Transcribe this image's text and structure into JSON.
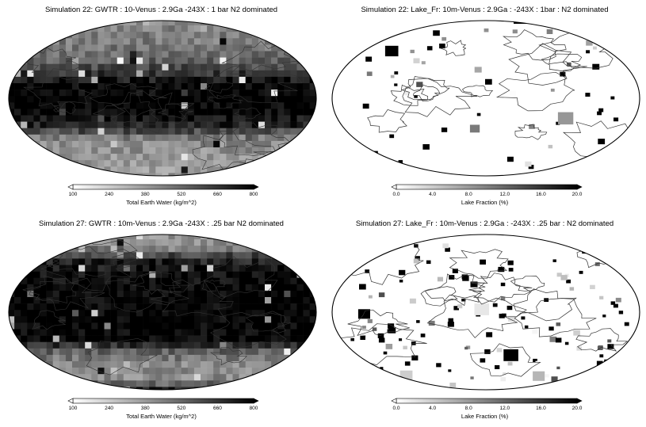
{
  "chart_data": [
    {
      "type": "heatmap",
      "projection": "Robinson",
      "title": "Simulation 22: GWTR : 10-Venus : 2.9Ga  -243X : 1 bar  N2 dominated",
      "colorbar_label": "Total Earth Water (kg/m^2)",
      "colorbar_ticks": [
        "100",
        "240",
        "380",
        "520",
        "660",
        "800"
      ],
      "vmin": 100,
      "vmax": 800,
      "colormap": "grayscale-reversed",
      "zonal_profile": {
        "lat": [
          90,
          75,
          60,
          45,
          30,
          15,
          0,
          -15,
          -30,
          -45,
          -60,
          -75,
          -90
        ],
        "value": [
          420,
          450,
          470,
          520,
          650,
          790,
          800,
          790,
          700,
          430,
          400,
          380,
          380
        ]
      }
    },
    {
      "type": "heatmap",
      "projection": "Robinson",
      "title": "Simulation 22: Lake_Fr: 10m-Venus : 2.9Ga : -243X : 1bar : N2 dominated",
      "colorbar_label": "Lake Fraction (%)",
      "colorbar_ticks": [
        "0.0",
        "4.0",
        "8.0",
        "12.0",
        "16.0",
        "20.0"
      ],
      "vmin": 0,
      "vmax": 20,
      "colormap": "grayscale-reversed",
      "background_value": 0
    },
    {
      "type": "heatmap",
      "projection": "Robinson",
      "title": "Simulation 27: GWTR : 10m-Venus : 2.9Ga  -243X : .25 bar  N2 dominated",
      "colorbar_label": "Total Earth Water (kg/m^2)",
      "colorbar_ticks": [
        "100",
        "240",
        "380",
        "520",
        "660",
        "800"
      ],
      "vmin": 100,
      "vmax": 800,
      "colormap": "grayscale-reversed",
      "zonal_profile": {
        "lat": [
          90,
          75,
          60,
          45,
          30,
          15,
          0,
          -15,
          -30,
          -45,
          -60,
          -75,
          -90
        ],
        "value": [
          400,
          420,
          700,
          760,
          800,
          800,
          800,
          800,
          800,
          500,
          420,
          420,
          780
        ]
      }
    },
    {
      "type": "heatmap",
      "projection": "Robinson",
      "title": "Simulation 27: Lake_Fr : 10m-Venus : 2.9Ga : -243X : .25 bar : N2 dominated",
      "colorbar_label": "Lake Fraction (%)",
      "colorbar_ticks": [
        "0.0",
        "4.0",
        "8.0",
        "12.0",
        "16.0",
        "20.0"
      ],
      "vmin": 0,
      "vmax": 20,
      "colormap": "grayscale-reversed",
      "background_value": 0
    }
  ]
}
